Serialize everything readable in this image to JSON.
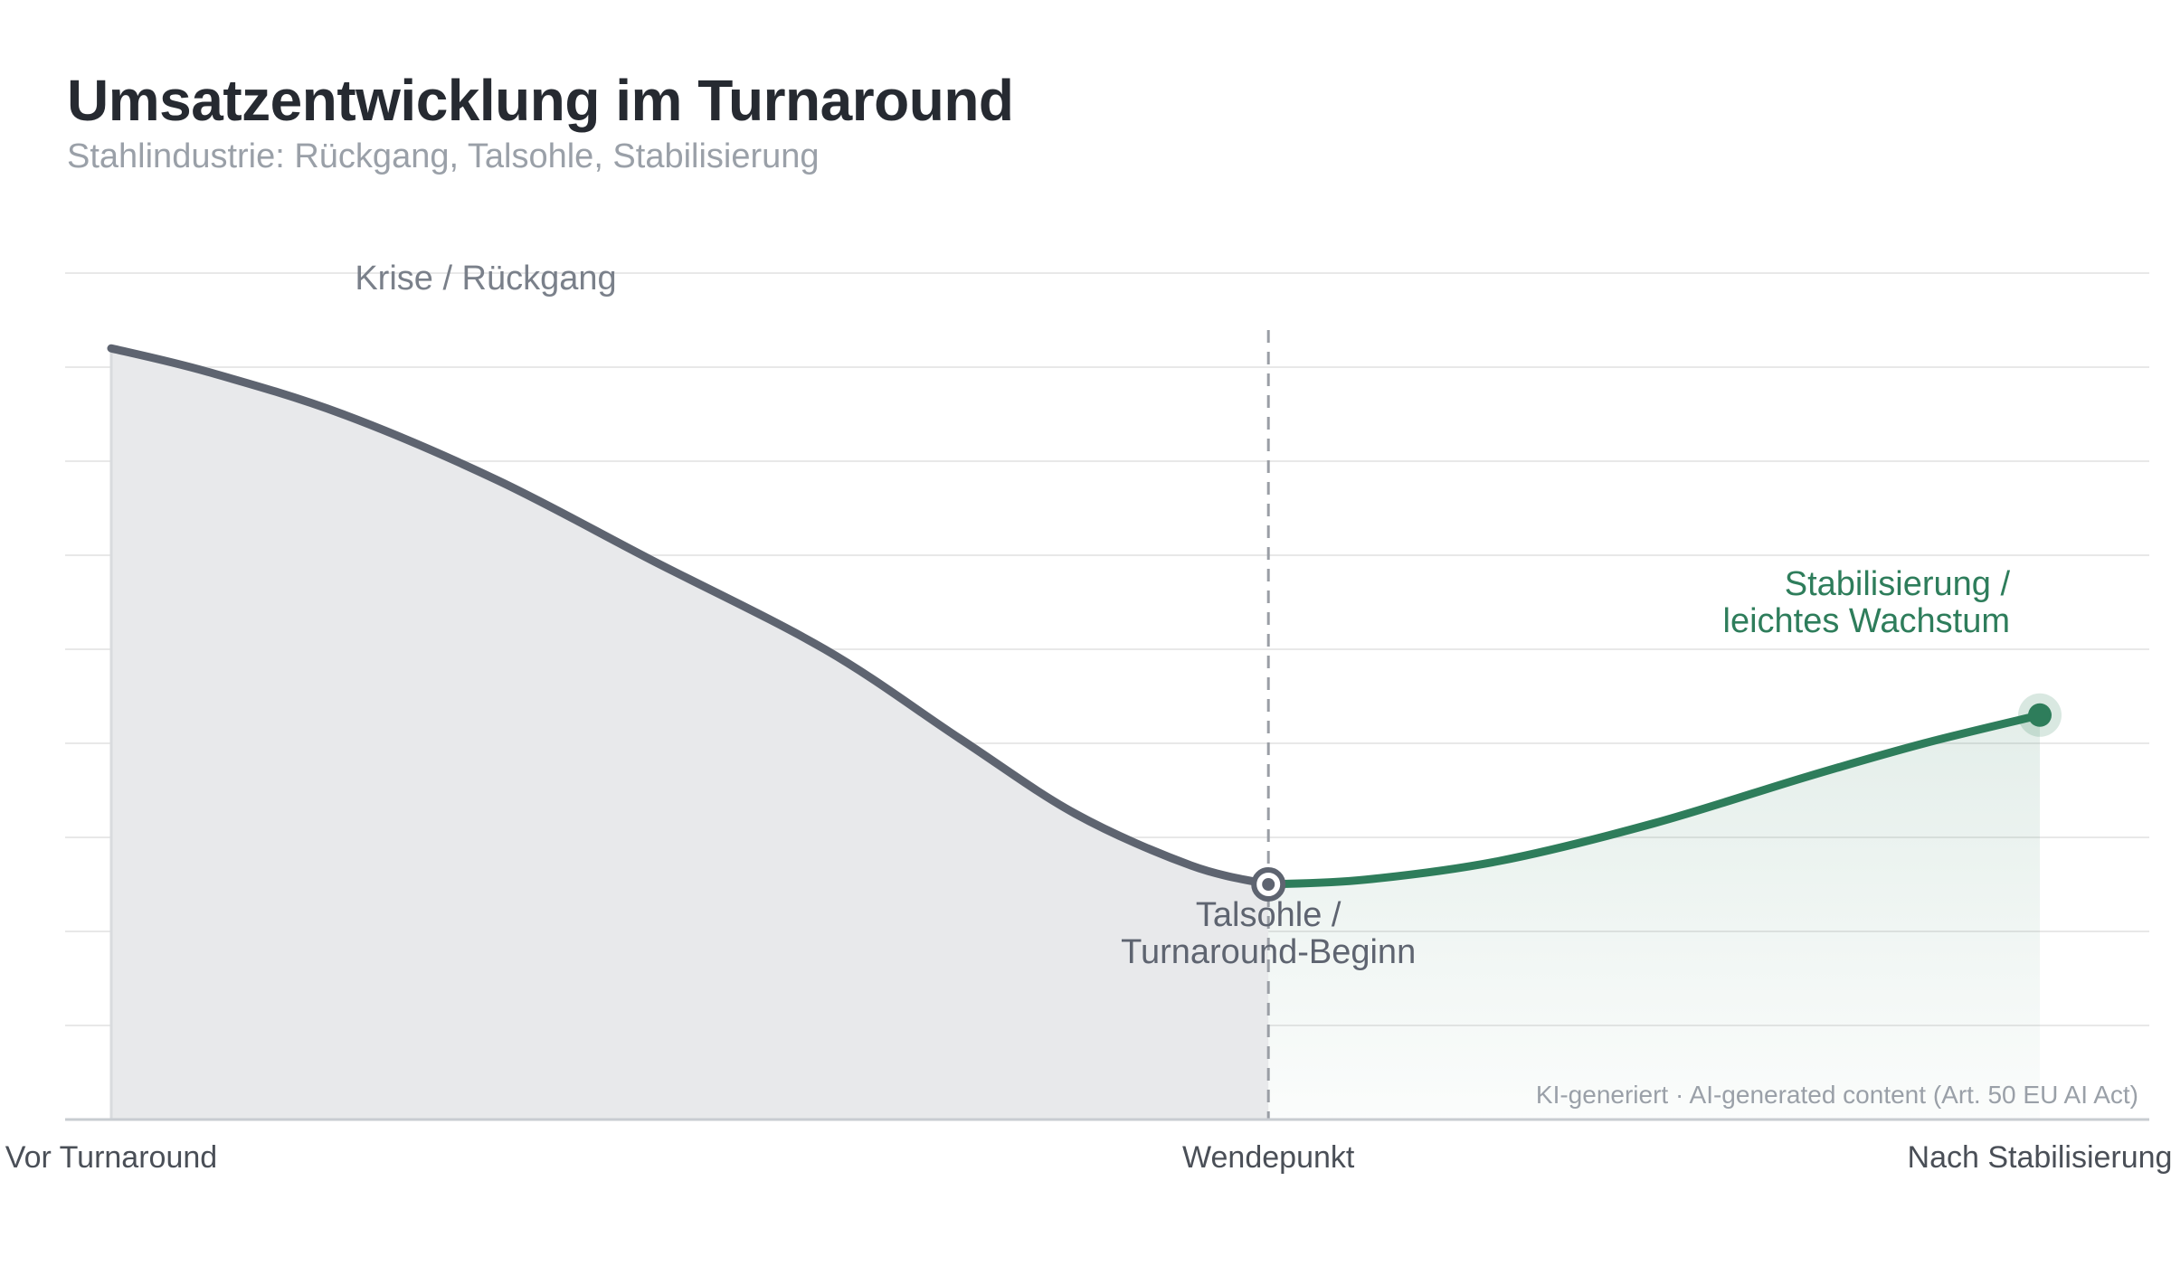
{
  "title": "Umsatzentwicklung im Turnaround",
  "subtitle": "Stahlindustrie: Rückgang, Talsohle, Stabilisierung",
  "disclaimer": "KI-generiert · AI-generated content (Art. 50 EU AI Act)",
  "colors": {
    "decline": "#5e6470",
    "recovery": "#2e7d5b",
    "decline_fill": "#e8e9eb",
    "annotation": "#7a808a",
    "grid": "#e8e8e8",
    "turning_line": "#9a9ea5"
  },
  "chart_data": {
    "type": "line",
    "title": "Umsatzentwicklung im Turnaround",
    "subtitle": "Stahlindustrie: Rückgang, Talsohle, Stabilisierung",
    "xlabel": "",
    "ylabel": "",
    "grid": true,
    "y_tick_labels_shown": false,
    "xlim": [
      0,
      100
    ],
    "ylim": [
      0,
      90
    ],
    "x_ticks": [
      {
        "x": 0,
        "label": "Vor Turnaround"
      },
      {
        "x": 60,
        "label": "Wendepunkt"
      },
      {
        "x": 100,
        "label": "Nach Stabilisierung"
      }
    ],
    "series": [
      {
        "role": "decline",
        "x": [
          0,
          5,
          12,
          20,
          28,
          37,
          44,
          50,
          56,
          60
        ],
        "y": [
          82,
          79.5,
          75,
          68,
          59.5,
          50,
          40.5,
          32.5,
          27,
          25
        ]
      },
      {
        "role": "recovery",
        "x": [
          60,
          65,
          72,
          80,
          88,
          94,
          100
        ],
        "y": [
          25,
          25.5,
          27.5,
          31.5,
          36.5,
          40,
          43
        ]
      }
    ],
    "turning_point": {
      "x": 60,
      "y": 25
    },
    "end_point": {
      "x": 100,
      "y": 43
    },
    "annotations": [
      {
        "role": "decline",
        "lines": [
          "Krise / Rückgang"
        ]
      },
      {
        "role": "trough",
        "lines": [
          "Talsohle /",
          "Turnaround-Beginn"
        ]
      },
      {
        "role": "recovery",
        "lines": [
          "Stabilisierung /",
          "leichtes Wachstum"
        ]
      }
    ]
  }
}
